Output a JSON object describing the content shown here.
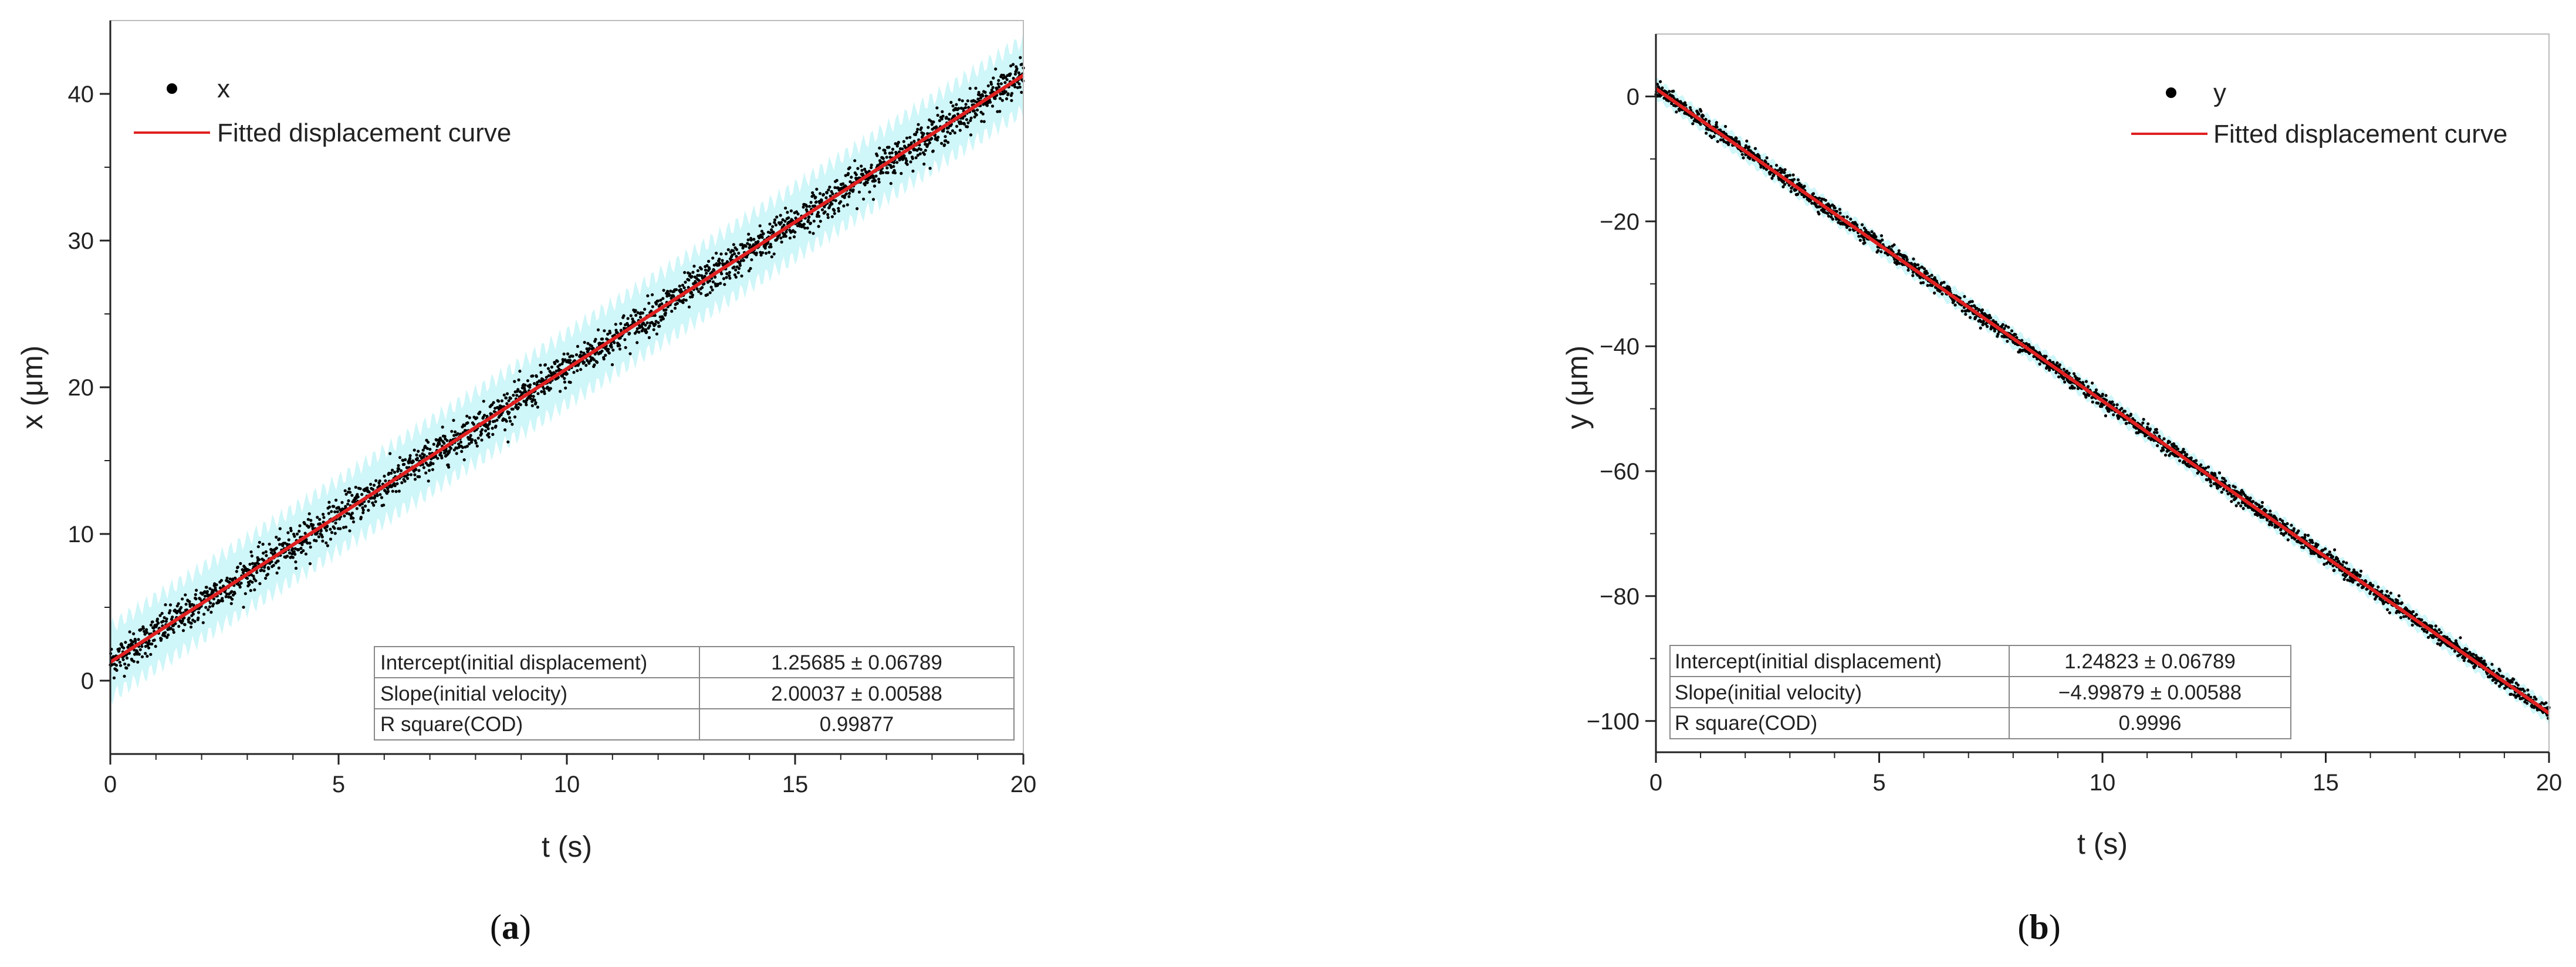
{
  "chart_data": [
    {
      "type": "scatter",
      "caption_letter": "a",
      "xlabel": "t (s)",
      "ylabel": "x (μm)",
      "xlim": [
        0,
        20
      ],
      "ylim": [
        -5,
        45
      ],
      "xticks": [
        0,
        5,
        10,
        15,
        20
      ],
      "yticks": [
        0,
        10,
        20,
        30,
        40
      ],
      "grid": false,
      "legend_position": "top-left",
      "series": [
        {
          "name": "x",
          "kind": "points",
          "color": "#000000",
          "intercept": 1.25685,
          "slope": 2.00037,
          "noise": 0.6
        },
        {
          "name": "Fitted displacement curve",
          "kind": "line",
          "color": "#e02020",
          "intercept": 1.25685,
          "slope": 2.00037
        }
      ],
      "band": {
        "color": "#bff3f5",
        "halfwidth": 3.0
      },
      "fit_table": [
        [
          "Intercept(initial displacement)",
          "1.25685 ± 0.06789"
        ],
        [
          "Slope(initial velocity)",
          "2.00037 ± 0.00588"
        ],
        [
          "R square(COD)",
          "0.99877"
        ]
      ]
    },
    {
      "type": "scatter",
      "caption_letter": "b",
      "xlabel": "t (s)",
      "ylabel": "y (μm)",
      "xlim": [
        0,
        20
      ],
      "ylim": [
        -105,
        10
      ],
      "xticks": [
        0,
        5,
        10,
        15,
        20
      ],
      "yticks": [
        0,
        -20,
        -40,
        -60,
        -80,
        -100
      ],
      "grid": false,
      "legend_position": "top-right",
      "series": [
        {
          "name": "y",
          "kind": "points",
          "color": "#000000",
          "intercept": 1.24823,
          "slope": -4.99879,
          "noise": 0.6
        },
        {
          "name": "Fitted displacement curve",
          "kind": "line",
          "color": "#e02020",
          "intercept": 1.24823,
          "slope": -4.99879
        }
      ],
      "band": {
        "color": "#bff3f5",
        "halfwidth": 2.0
      },
      "fit_table": [
        [
          "Intercept(initial displacement)",
          "1.24823 ± 0.06789"
        ],
        [
          "Slope(initial velocity)",
          "−4.99879 ± 0.00588"
        ],
        [
          "R square(COD)",
          "0.9996"
        ]
      ]
    }
  ]
}
